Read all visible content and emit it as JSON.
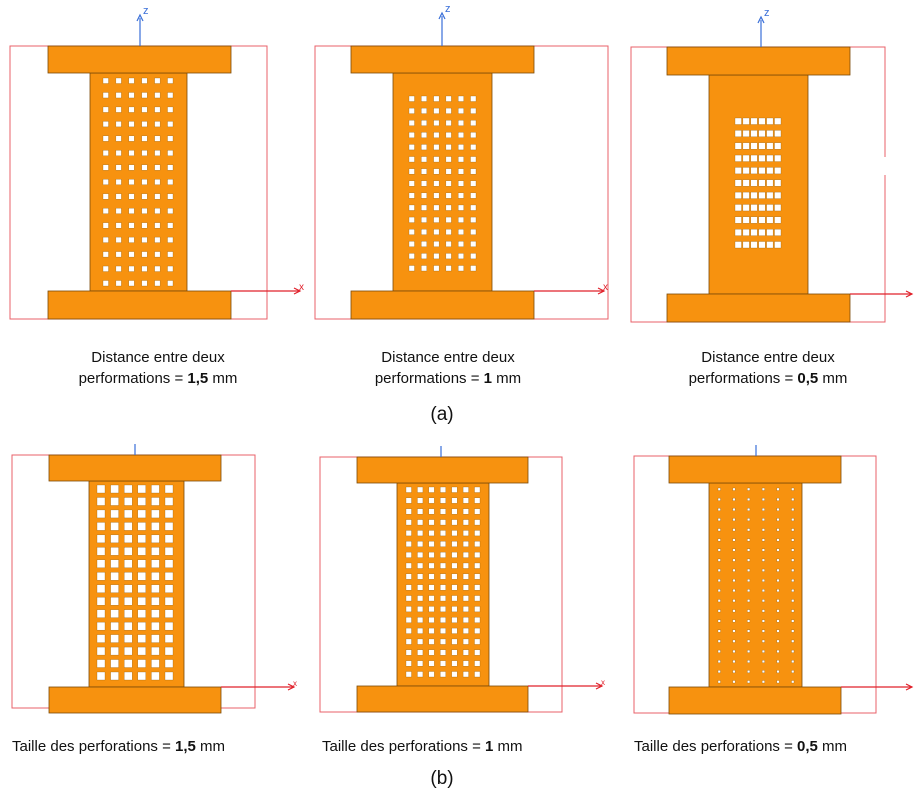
{
  "colors": {
    "specimen_fill": "#f7920f",
    "specimen_stroke": "#7a4a08",
    "hole_fill": "#ffffff",
    "frame": "#e8606a",
    "z_axis": "#3a6fd8",
    "x_axis": "#e0202a"
  },
  "axes": {
    "z": "z",
    "x": "x"
  },
  "row_a": {
    "label": "(a)",
    "panels": [
      {
        "caption_line1": "Distance entre deux",
        "caption_prefix": "performations  = ",
        "value": "1,5",
        "unit": " mm",
        "hole_cols": 6,
        "hole_rows": 15
      },
      {
        "caption_line1": "Distance entre deux",
        "caption_prefix": "performations  = ",
        "value": "1",
        "unit": " mm",
        "hole_cols": 6,
        "hole_rows": 15
      },
      {
        "caption_line1": "Distance entre deux",
        "caption_prefix": "performations  = ",
        "value": "0,5",
        "unit": " mm",
        "hole_cols": 6,
        "hole_rows": 11
      }
    ]
  },
  "row_b": {
    "label": "(b)",
    "panels": [
      {
        "caption_prefix": "Taille des perforations =  ",
        "value": "1,5",
        "unit": " mm",
        "hole_cols": 6,
        "hole_rows": 16
      },
      {
        "caption_prefix": "Taille des perforations =  ",
        "value": "1",
        "unit": " mm",
        "hole_cols": 7,
        "hole_rows": 18
      },
      {
        "caption_prefix": "Taille des perforations =  ",
        "value": "0,5",
        "unit": " mm",
        "hole_cols": 6,
        "hole_rows": 20
      }
    ]
  }
}
